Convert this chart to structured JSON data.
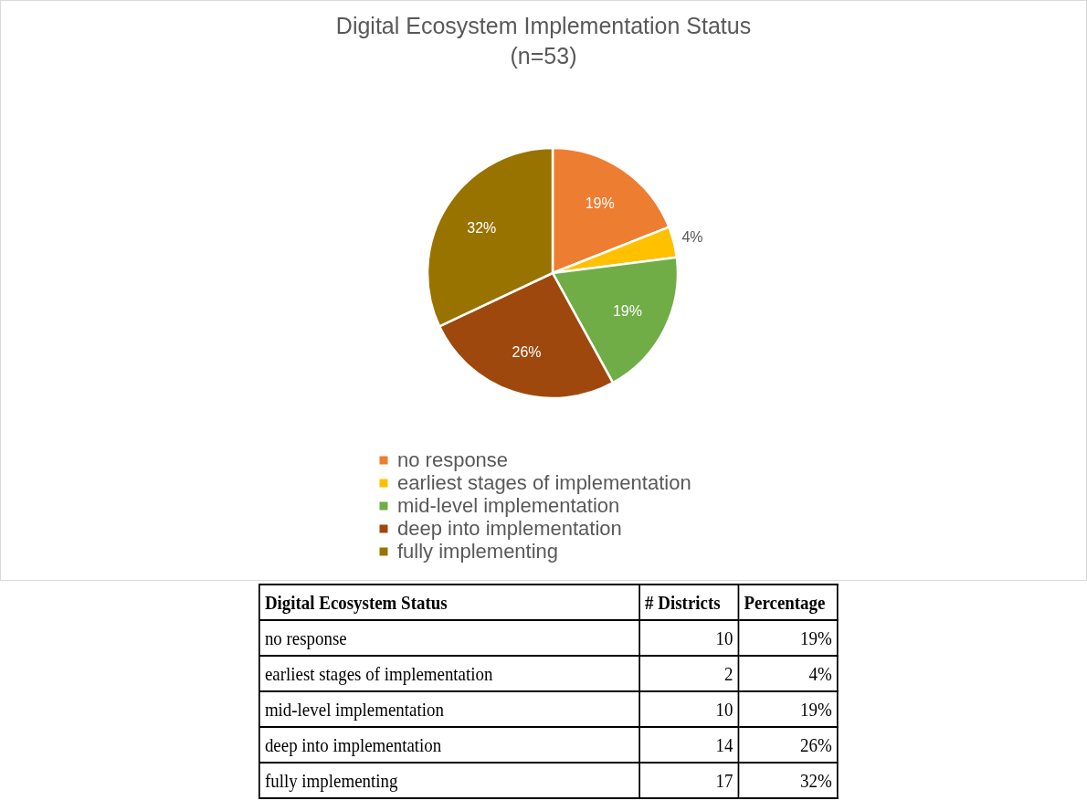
{
  "chart_data": [
    {
      "type": "pie",
      "title": "Digital Ecosystem Implementation Status",
      "subtitle": "(n=53)",
      "categories": [
        "no response",
        "earliest stages of implementation",
        "mid-level implementation",
        "deep into implementation",
        "fully implementing"
      ],
      "values": [
        19,
        4,
        19,
        26,
        32
      ],
      "value_labels": [
        "19%",
        "4%",
        "19%",
        "26%",
        "32%"
      ],
      "colors": [
        "#ed7d31",
        "#ffc000",
        "#70ad47",
        "#9e480e",
        "#997300"
      ],
      "legend": "bottom"
    },
    {
      "type": "other",
      "categories": [
        "no response",
        "earliest stages of implementation",
        "mid-level implementation",
        "deep into implementation",
        "fully implementing"
      ],
      "values": [
        10,
        2,
        10,
        14,
        17
      ],
      "data_labels": true,
      "annotations": [
        "Digital Ecosystem Status",
        "# Districts",
        "Percentage"
      ]
    }
  ]
}
